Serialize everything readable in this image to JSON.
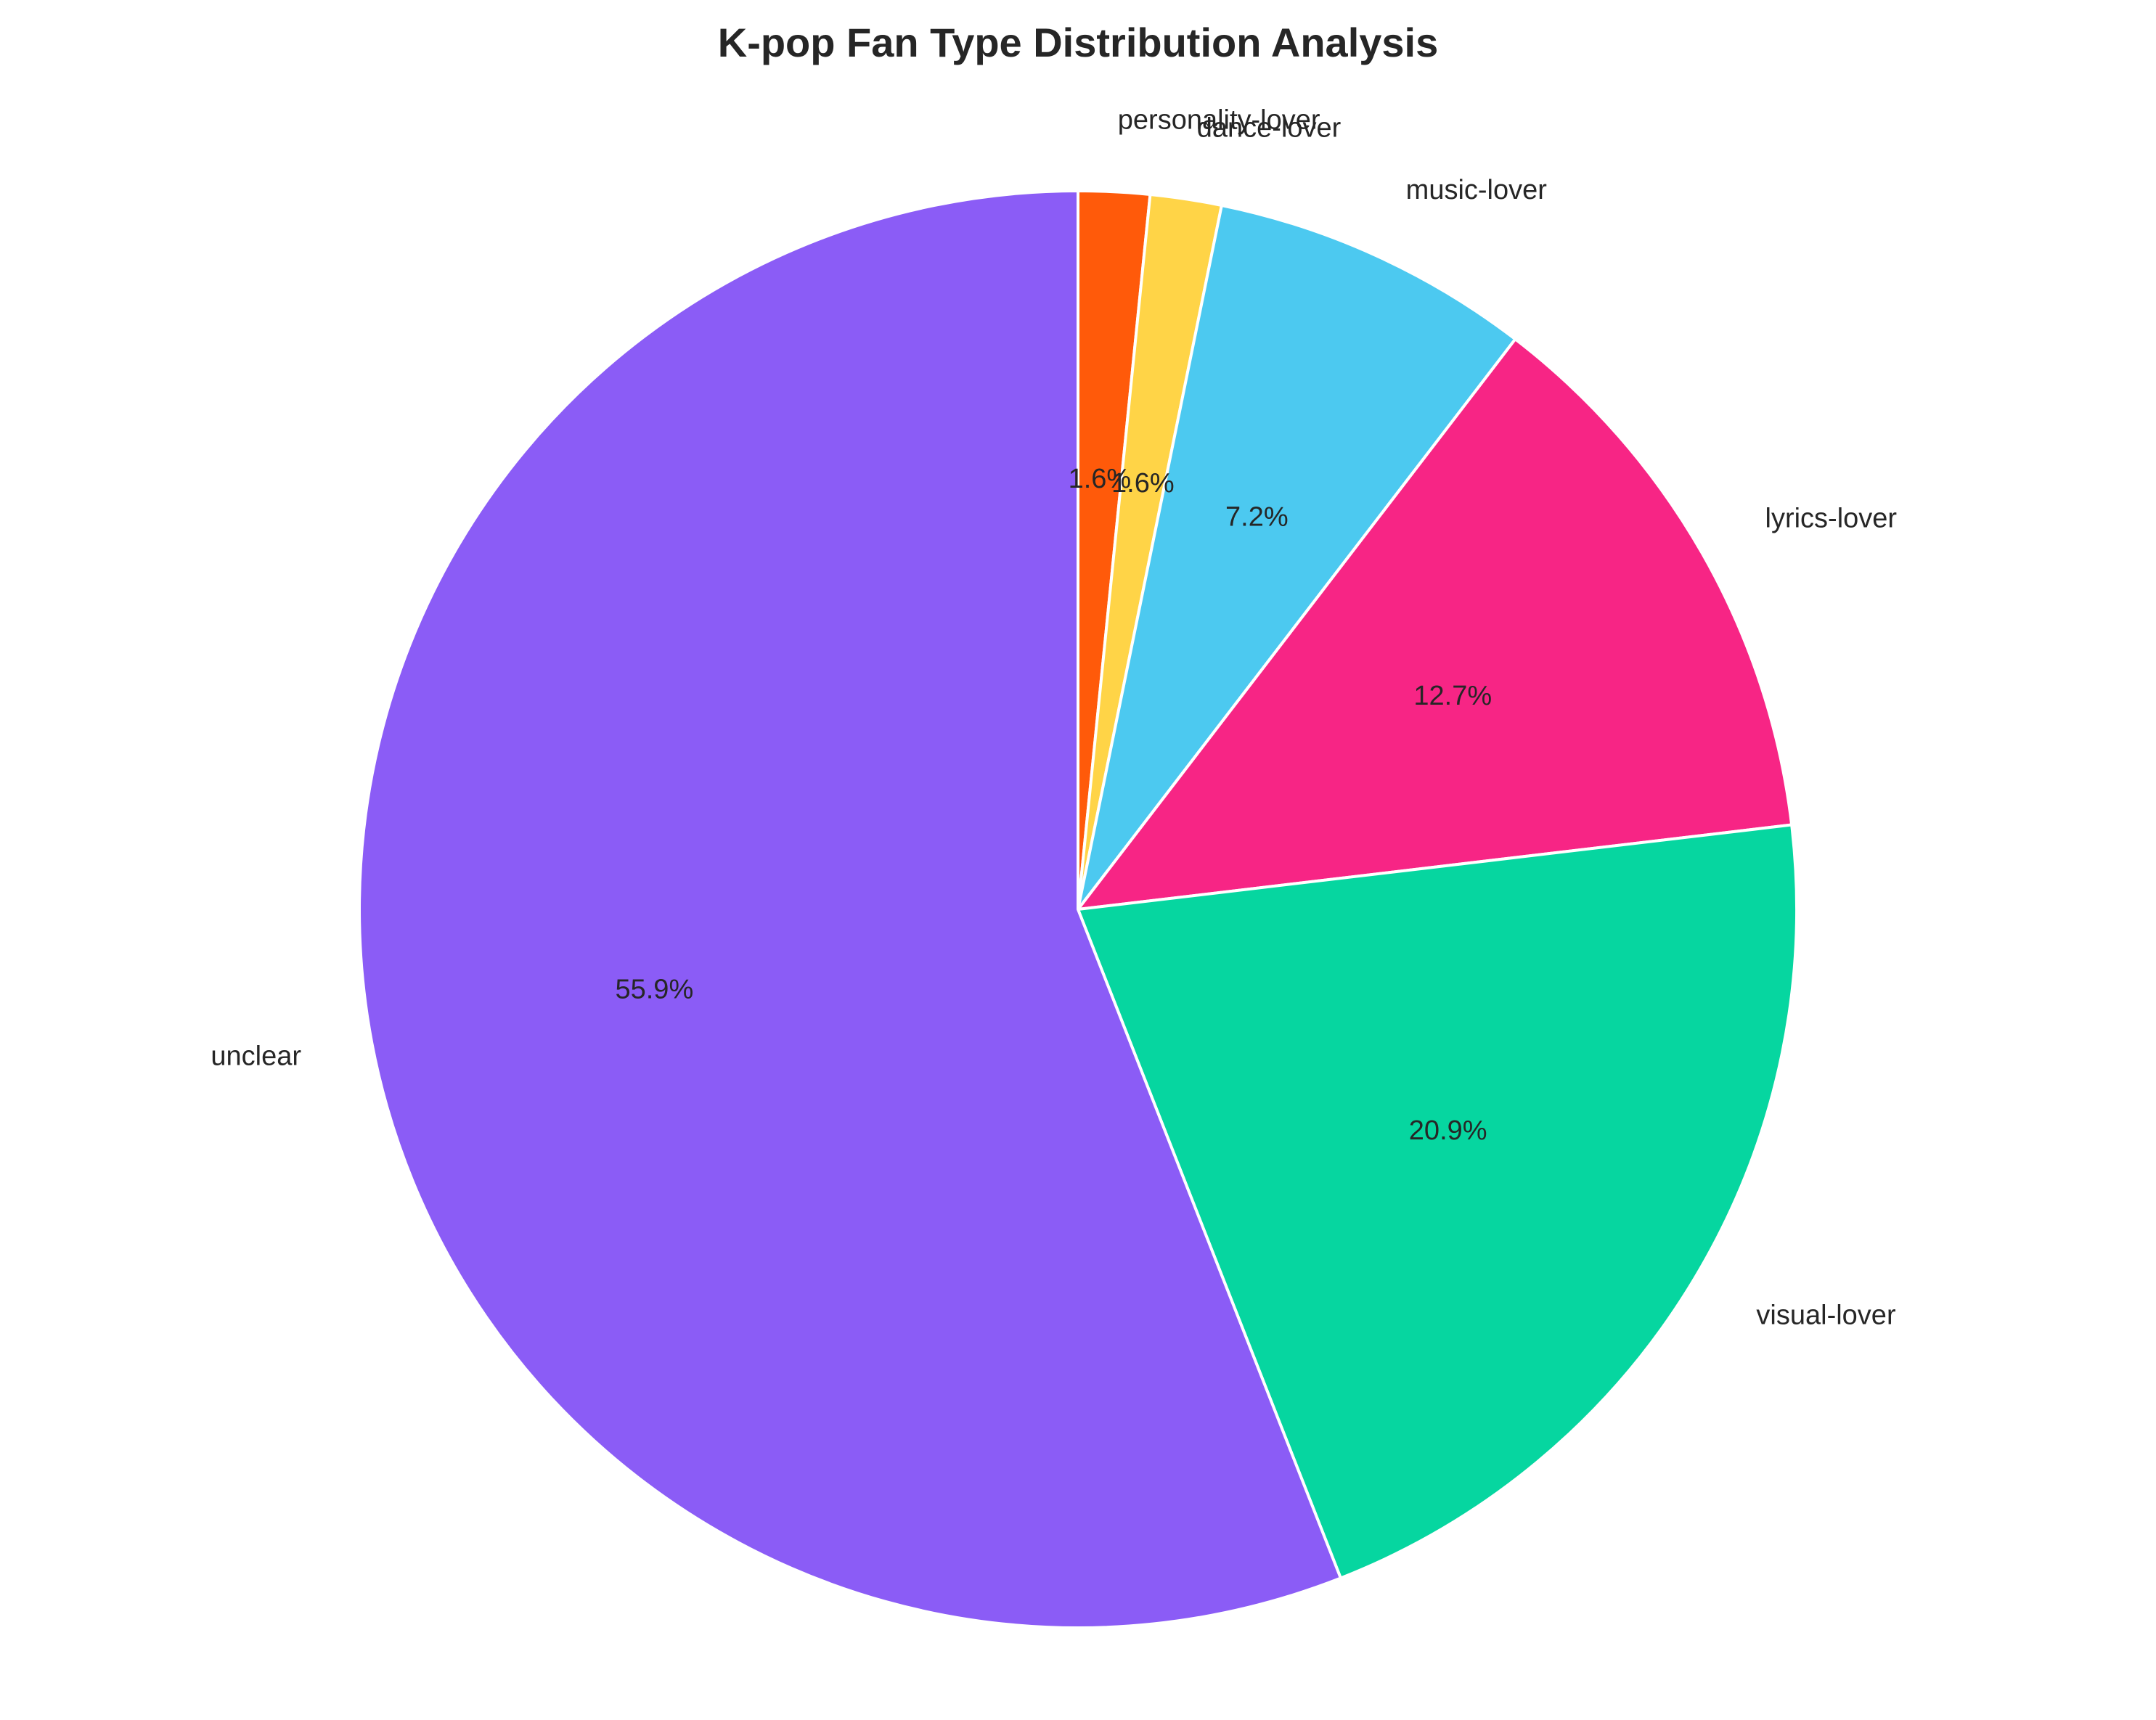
{
  "chart_data": {
    "type": "pie",
    "title": "K-pop Fan Type Distribution Analysis",
    "start_angle_deg": 90,
    "direction": "clockwise",
    "slices": [
      {
        "label": "personality-lover",
        "value": 1.6,
        "pct_label": "1.6%",
        "color": "#FF5A0A"
      },
      {
        "label": "dance-lover",
        "value": 1.6,
        "pct_label": "1.6%",
        "color": "#FFD447"
      },
      {
        "label": "music-lover",
        "value": 7.2,
        "pct_label": "7.2%",
        "color": "#4CC9F0"
      },
      {
        "label": "lyrics-lover",
        "value": 12.7,
        "pct_label": "12.7%",
        "color": "#F72585"
      },
      {
        "label": "visual-lover",
        "value": 20.9,
        "pct_label": "20.9%",
        "color": "#06D6A0"
      },
      {
        "label": "unclear",
        "value": 55.9,
        "pct_label": "55.9%",
        "color": "#8B5CF6"
      }
    ]
  }
}
